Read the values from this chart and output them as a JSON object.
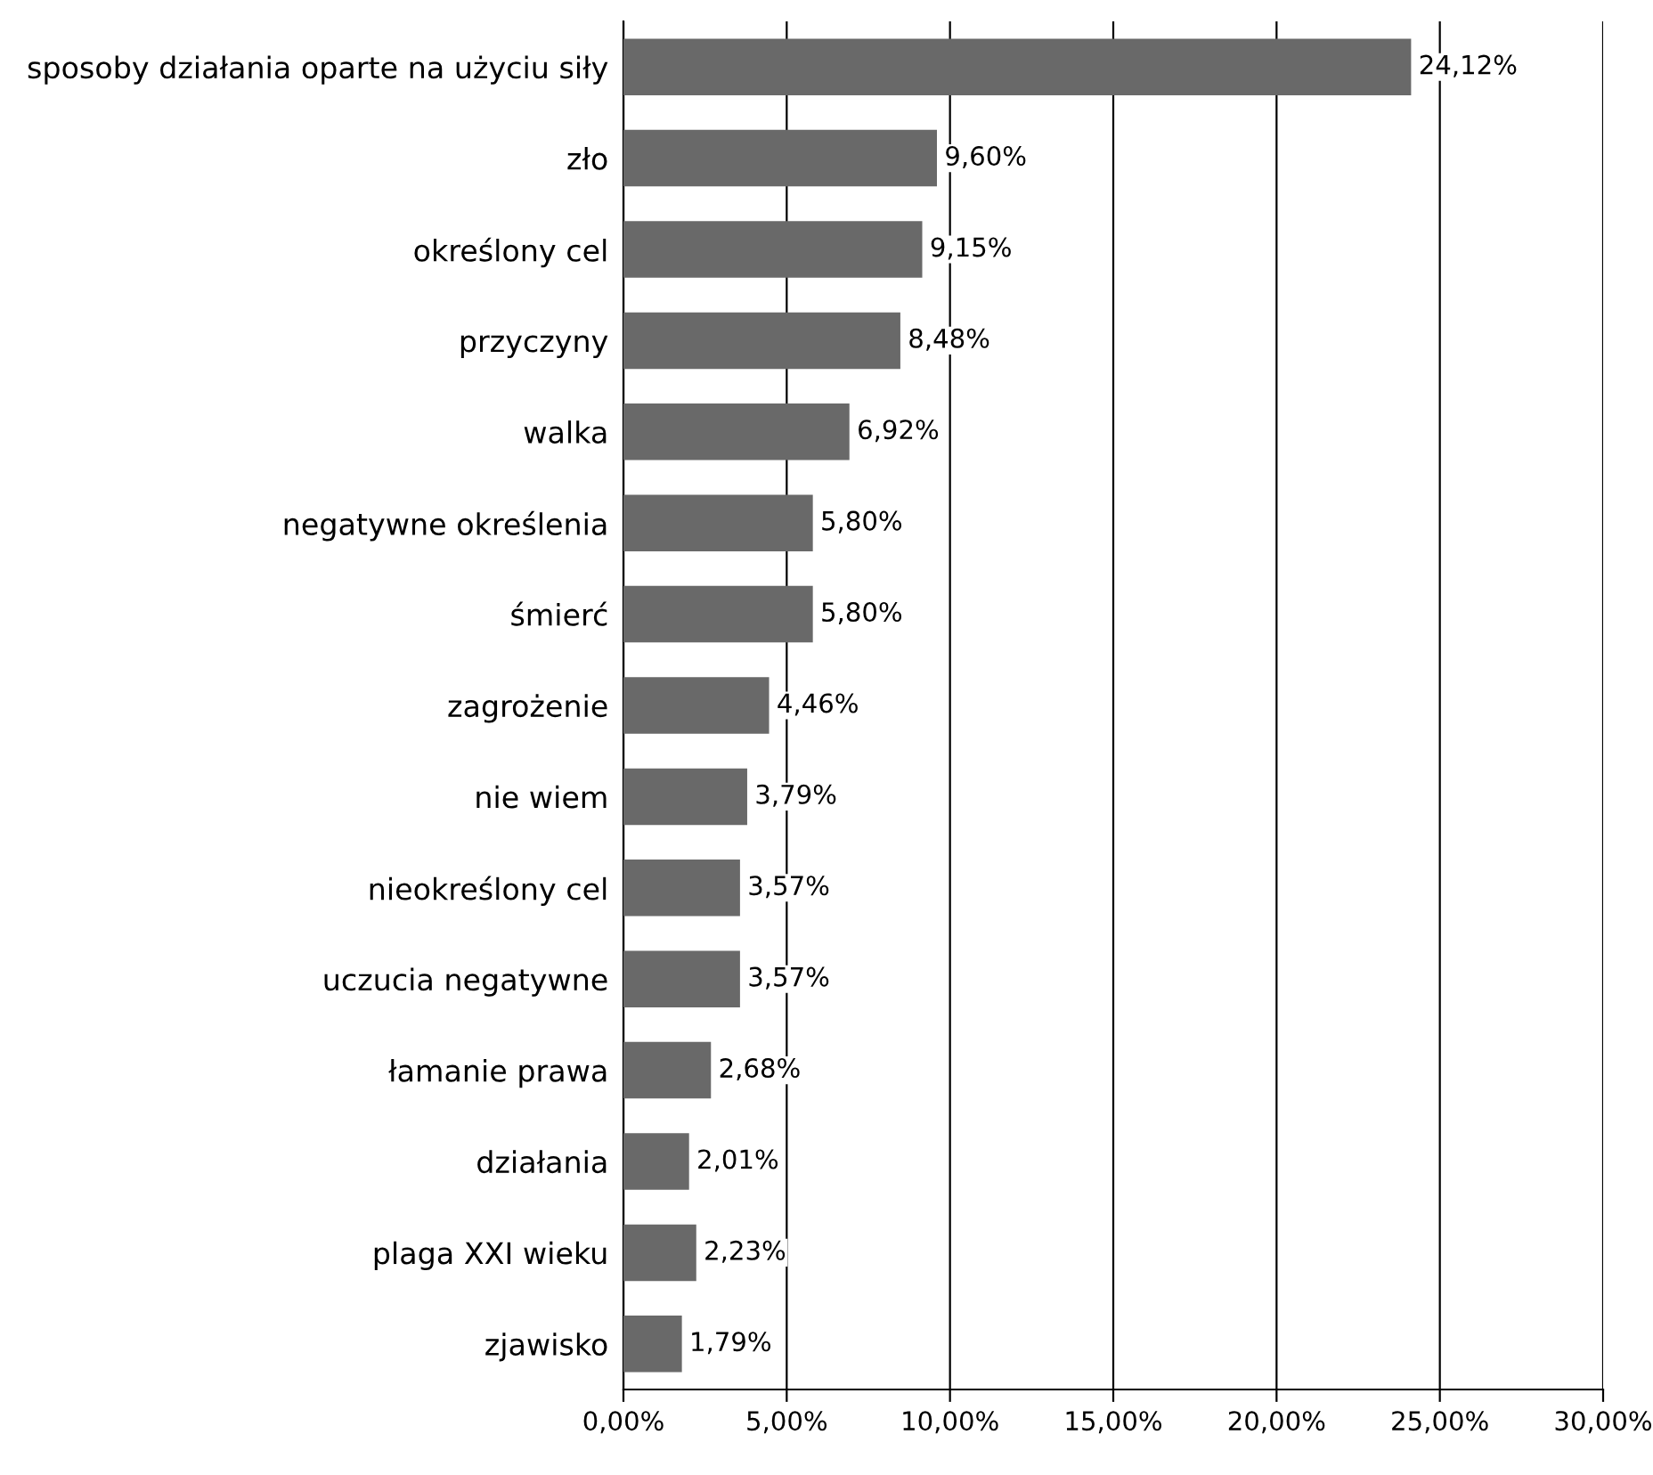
{
  "chart_data": {
    "type": "bar",
    "orientation": "horizontal",
    "categories": [
      "sposoby działania oparte na użyciu siły",
      "zło",
      "określony cel",
      "przyczyny",
      "walka",
      "negatywne określenia",
      "śmierć",
      "zagrożenie",
      "nie wiem",
      "nieokreślony cel",
      "uczucia negatywne",
      "łamanie prawa",
      "działania",
      "plaga XXI wieku",
      "zjawisko"
    ],
    "values": [
      24.12,
      9.6,
      9.15,
      8.48,
      6.92,
      5.8,
      5.8,
      4.46,
      3.79,
      3.57,
      3.57,
      2.68,
      2.01,
      2.23,
      1.79
    ],
    "value_labels": [
      "24,12%",
      "9,60%",
      "9,15%",
      "8,48%",
      "6,92%",
      "5,80%",
      "5,80%",
      "4,46%",
      "3,79%",
      "3,57%",
      "3,57%",
      "2,68%",
      "2,01%",
      "2,23%",
      "1,79%"
    ],
    "color": "#696969",
    "xlim": [
      0,
      30
    ],
    "xticks": [
      {
        "value": 0,
        "label": "0,00%"
      },
      {
        "value": 5,
        "label": "5,00%"
      },
      {
        "value": 10,
        "label": "10,00%"
      },
      {
        "value": 15,
        "label": "15,00%"
      },
      {
        "value": 20,
        "label": "20,00%"
      },
      {
        "value": 25,
        "label": "25,00%"
      },
      {
        "value": 30,
        "label": "30,00%"
      }
    ],
    "grid": "x"
  }
}
